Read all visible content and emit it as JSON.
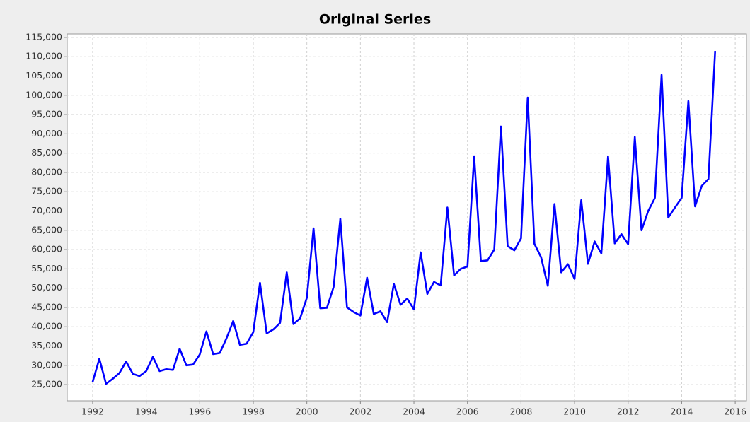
{
  "chart_data": {
    "type": "line",
    "title": "Original Series",
    "color": "#0000ff",
    "grid": true,
    "x": [
      1992,
      1992.25,
      1992.5,
      1992.75,
      1993,
      1993.25,
      1993.5,
      1993.75,
      1994,
      1994.25,
      1994.5,
      1994.75,
      1995,
      1995.25,
      1995.5,
      1995.75,
      1996,
      1996.25,
      1996.5,
      1996.75,
      1997,
      1997.25,
      1997.5,
      1997.75,
      1998,
      1998.25,
      1998.5,
      1998.75,
      1999,
      1999.25,
      1999.5,
      1999.75,
      2000,
      2000.25,
      2000.5,
      2000.75,
      2001,
      2001.25,
      2001.5,
      2001.75,
      2002,
      2002.25,
      2002.5,
      2002.75,
      2003,
      2003.25,
      2003.5,
      2003.75,
      2004,
      2004.25,
      2004.5,
      2004.75,
      2005,
      2005.25,
      2005.5,
      2005.75,
      2006,
      2006.25,
      2006.5,
      2006.75,
      2007,
      2007.25,
      2007.5,
      2007.75,
      2008,
      2008.25,
      2008.5,
      2008.75,
      2009,
      2009.25,
      2009.5,
      2009.75,
      2010,
      2010.25,
      2010.5,
      2010.75,
      2011,
      2011.25,
      2011.5,
      2011.75,
      2012,
      2012.25,
      2012.5,
      2012.75,
      2013,
      2013.25,
      2013.5,
      2013.75,
      2014,
      2014.25,
      2014.5,
      2014.75,
      2015,
      2015.25
    ],
    "values": [
      25700,
      31700,
      25200,
      26500,
      28000,
      31000,
      27800,
      27200,
      28500,
      32200,
      28500,
      29000,
      28800,
      34300,
      30000,
      30200,
      32800,
      38800,
      32900,
      33200,
      37000,
      41500,
      35300,
      35600,
      38600,
      51400,
      38300,
      39300,
      41000,
      54100,
      40700,
      42200,
      47500,
      65500,
      44800,
      44900,
      50300,
      68000,
      45000,
      43800,
      42900,
      52700,
      43300,
      44000,
      41200,
      51100,
      45700,
      47300,
      44500,
      59300,
      48500,
      51600,
      50700,
      70900,
      53300,
      55000,
      55600,
      84200,
      57000,
      57200,
      60000,
      91900,
      60900,
      59800,
      62900,
      99400,
      61500,
      58000,
      50600,
      71800,
      54100,
      56200,
      52400,
      72800,
      56300,
      62100,
      59000,
      84200,
      61600,
      64000,
      61400,
      89200,
      65000,
      70000,
      73400,
      105300,
      68300,
      70900,
      73400,
      98500,
      71200,
      76500,
      78300,
      111500
    ],
    "xlim": [
      1991.05,
      2016.42
    ],
    "xticks": [
      1992,
      1994,
      1996,
      1998,
      2000,
      2002,
      2004,
      2006,
      2008,
      2010,
      2012,
      2014,
      2016
    ],
    "ylim": [
      20800,
      115900
    ],
    "yticks": [
      {
        "value": 25000,
        "label": "25,000"
      },
      {
        "value": 30000,
        "label": "30,000"
      },
      {
        "value": 35000,
        "label": "35,000"
      },
      {
        "value": 40000,
        "label": "40,000"
      },
      {
        "value": 45000,
        "label": "45,000"
      },
      {
        "value": 50000,
        "label": "50,000"
      },
      {
        "value": 55000,
        "label": "55,000"
      },
      {
        "value": 60000,
        "label": "60,000"
      },
      {
        "value": 65000,
        "label": "65,000"
      },
      {
        "value": 70000,
        "label": "70,000"
      },
      {
        "value": 75000,
        "label": "75,000"
      },
      {
        "value": 80000,
        "label": "80,000"
      },
      {
        "value": 85000,
        "label": "85,000"
      },
      {
        "value": 90000,
        "label": "90,000"
      },
      {
        "value": 95000,
        "label": "95,000"
      },
      {
        "value": 100000,
        "label": "100,000"
      },
      {
        "value": 105000,
        "label": "105,000"
      },
      {
        "value": 110000,
        "label": "110,000"
      },
      {
        "value": 115000,
        "label": "115,000"
      }
    ]
  }
}
